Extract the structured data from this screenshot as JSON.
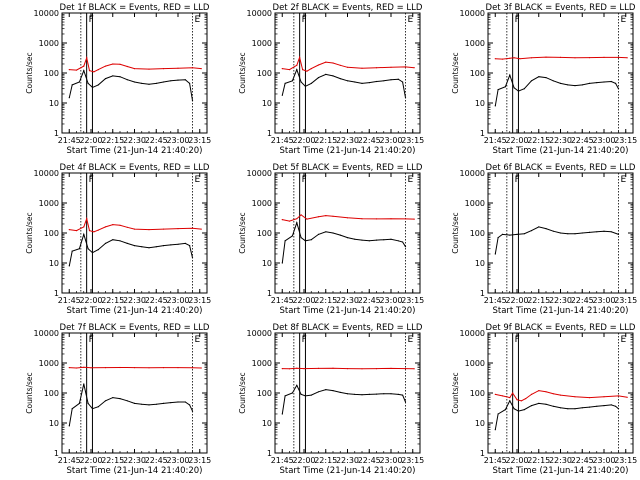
{
  "figure": {
    "xlabel": "Start Time (21-Jun-14 21:40:20)",
    "ylabel": "Counts/sec",
    "colors": {
      "events": "#000000",
      "lld": "#dd0000",
      "background": "#ffffff",
      "axes": "#000000"
    }
  },
  "chart_data": [
    {
      "type": "line",
      "title": "Det 1f BLACK = Events, RED = LLD",
      "xlabel": "Start Time (21-Jun-14 21:40:20)",
      "ylabel": "Counts/sec",
      "x_ticks": [
        "21:45",
        "22:00",
        "22:15",
        "22:30",
        "22:45",
        "23:00",
        "23:15"
      ],
      "y_ticks": [
        "1",
        "10",
        "100",
        "1000",
        "10000"
      ],
      "yscale": "log",
      "ylim": [
        1,
        10000
      ],
      "markers": [
        "F",
        "E"
      ],
      "series": [
        {
          "color": "#000000",
          "x": [
            "21:45",
            "21:47",
            "21:52",
            "21:55",
            "21:58",
            "22:01",
            "22:05",
            "22:10",
            "22:15",
            "22:20",
            "22:25",
            "22:30",
            "22:35",
            "22:40",
            "22:45",
            "22:50",
            "22:55",
            "23:00",
            "23:05",
            "23:08",
            "23:10"
          ],
          "y": [
            15,
            40,
            50,
            120,
            45,
            33,
            40,
            65,
            80,
            75,
            60,
            50,
            45,
            42,
            45,
            50,
            55,
            58,
            60,
            45,
            12
          ]
        },
        {
          "color": "#dd0000",
          "x": [
            "21:45",
            "21:50",
            "21:55",
            "21:57",
            "21:59",
            "22:02",
            "22:05",
            "22:10",
            "22:15",
            "22:20",
            "22:25",
            "22:30",
            "22:40",
            "22:50",
            "23:00",
            "23:10",
            "23:16"
          ],
          "y": [
            130,
            125,
            170,
            320,
            120,
            110,
            130,
            170,
            200,
            195,
            165,
            140,
            135,
            140,
            145,
            150,
            140
          ]
        }
      ]
    },
    {
      "type": "line",
      "title": "Det 2f BLACK = Events, RED = LLD",
      "xlabel": "Start Time (21-Jun-14 21:40:20)",
      "ylabel": "Counts/sec",
      "x_ticks": [
        "21:45",
        "22:00",
        "22:15",
        "22:30",
        "22:45",
        "23:00",
        "23:15"
      ],
      "y_ticks": [
        "1",
        "10",
        "100",
        "1000",
        "10000"
      ],
      "yscale": "log",
      "ylim": [
        1,
        10000
      ],
      "markers": [
        "F",
        "E"
      ],
      "series": [
        {
          "color": "#000000",
          "x": [
            "21:45",
            "21:47",
            "21:52",
            "21:55",
            "21:58",
            "22:01",
            "22:05",
            "22:10",
            "22:15",
            "22:20",
            "22:25",
            "22:30",
            "22:35",
            "22:40",
            "22:45",
            "22:50",
            "22:55",
            "23:00",
            "23:05",
            "23:08",
            "23:10"
          ],
          "y": [
            18,
            45,
            55,
            130,
            50,
            36,
            45,
            70,
            90,
            80,
            65,
            55,
            50,
            45,
            48,
            52,
            55,
            60,
            62,
            50,
            15
          ]
        },
        {
          "color": "#dd0000",
          "x": [
            "21:45",
            "21:50",
            "21:55",
            "21:57",
            "21:59",
            "22:02",
            "22:05",
            "22:10",
            "22:15",
            "22:20",
            "22:25",
            "22:30",
            "22:40",
            "22:50",
            "23:00",
            "23:10",
            "23:16"
          ],
          "y": [
            140,
            130,
            180,
            330,
            130,
            115,
            140,
            185,
            230,
            215,
            180,
            155,
            145,
            150,
            155,
            160,
            150
          ]
        }
      ]
    },
    {
      "type": "line",
      "title": "Det 3f BLACK = Events, RED = LLD",
      "xlabel": "Start Time (21-Jun-14 21:40:20)",
      "ylabel": "Counts/sec",
      "x_ticks": [
        "21:45",
        "22:00",
        "22:15",
        "22:30",
        "22:45",
        "23:00",
        "23:15"
      ],
      "y_ticks": [
        "1",
        "10",
        "100",
        "1000",
        "10000"
      ],
      "yscale": "log",
      "ylim": [
        1,
        10000
      ],
      "markers": [
        "F",
        "E"
      ],
      "series": [
        {
          "color": "#000000",
          "x": [
            "21:45",
            "21:47",
            "21:52",
            "21:55",
            "21:58",
            "22:01",
            "22:05",
            "22:10",
            "22:15",
            "22:20",
            "22:25",
            "22:30",
            "22:35",
            "22:40",
            "22:45",
            "22:50",
            "22:55",
            "23:00",
            "23:05",
            "23:08",
            "23:10"
          ],
          "y": [
            8,
            28,
            35,
            85,
            32,
            25,
            30,
            55,
            75,
            70,
            55,
            45,
            40,
            38,
            40,
            45,
            48,
            50,
            52,
            45,
            30
          ]
        },
        {
          "color": "#dd0000",
          "x": [
            "21:45",
            "21:50",
            "21:55",
            "21:58",
            "22:02",
            "22:10",
            "22:20",
            "22:30",
            "22:40",
            "22:50",
            "23:00",
            "23:10",
            "23:16"
          ],
          "y": [
            300,
            290,
            310,
            320,
            300,
            320,
            340,
            330,
            320,
            325,
            330,
            330,
            320
          ]
        }
      ]
    },
    {
      "type": "line",
      "title": "Det 4f BLACK = Events, RED = LLD",
      "xlabel": "Start Time (21-Jun-14 21:40:20)",
      "ylabel": "Counts/sec",
      "x_ticks": [
        "21:45",
        "22:00",
        "22:15",
        "22:30",
        "22:45",
        "23:00",
        "23:15"
      ],
      "y_ticks": [
        "1",
        "10",
        "100",
        "1000",
        "10000"
      ],
      "yscale": "log",
      "ylim": [
        1,
        10000
      ],
      "markers": [
        "F",
        "E"
      ],
      "series": [
        {
          "color": "#000000",
          "x": [
            "21:45",
            "21:47",
            "21:52",
            "21:55",
            "21:58",
            "22:01",
            "22:05",
            "22:10",
            "22:15",
            "22:20",
            "22:25",
            "22:30",
            "22:35",
            "22:40",
            "22:45",
            "22:50",
            "22:55",
            "23:00",
            "23:05",
            "23:08",
            "23:10"
          ],
          "y": [
            8,
            25,
            30,
            90,
            30,
            22,
            28,
            45,
            60,
            55,
            45,
            38,
            35,
            32,
            35,
            38,
            40,
            42,
            45,
            38,
            15
          ]
        },
        {
          "color": "#dd0000",
          "x": [
            "21:45",
            "21:50",
            "21:55",
            "21:57",
            "21:59",
            "22:02",
            "22:05",
            "22:10",
            "22:15",
            "22:20",
            "22:25",
            "22:30",
            "22:40",
            "22:50",
            "23:00",
            "23:10",
            "23:16"
          ],
          "y": [
            130,
            120,
            160,
            300,
            120,
            110,
            125,
            160,
            190,
            180,
            155,
            135,
            130,
            135,
            140,
            145,
            135
          ]
        }
      ]
    },
    {
      "type": "line",
      "title": "Det 5f BLACK = Events, RED = LLD",
      "xlabel": "Start Time (21-Jun-14 21:40:20)",
      "ylabel": "Counts/sec",
      "x_ticks": [
        "21:45",
        "22:00",
        "22:15",
        "22:30",
        "22:45",
        "23:00",
        "23:15"
      ],
      "y_ticks": [
        "1",
        "10",
        "100",
        "1000",
        "10000"
      ],
      "yscale": "log",
      "ylim": [
        1,
        10000
      ],
      "markers": [
        "F",
        "E"
      ],
      "series": [
        {
          "color": "#000000",
          "x": [
            "21:45",
            "21:47",
            "21:52",
            "21:55",
            "21:58",
            "22:01",
            "22:05",
            "22:10",
            "22:15",
            "22:20",
            "22:25",
            "22:30",
            "22:35",
            "22:40",
            "22:45",
            "22:50",
            "22:55",
            "23:00",
            "23:05",
            "23:08",
            "23:10"
          ],
          "y": [
            10,
            55,
            80,
            220,
            70,
            55,
            60,
            90,
            110,
            100,
            85,
            70,
            62,
            58,
            55,
            58,
            60,
            62,
            55,
            50,
            35
          ]
        },
        {
          "color": "#dd0000",
          "x": [
            "21:45",
            "21:50",
            "21:55",
            "21:58",
            "22:02",
            "22:10",
            "22:15",
            "22:20",
            "22:30",
            "22:40",
            "22:50",
            "23:00",
            "23:10",
            "23:16"
          ],
          "y": [
            280,
            250,
            300,
            400,
            290,
            350,
            380,
            360,
            320,
            300,
            295,
            300,
            295,
            290
          ]
        }
      ]
    },
    {
      "type": "line",
      "title": "Det 6f BLACK = Events, RED = LLD",
      "xlabel": "Start Time (21-Jun-14 21:40:20)",
      "ylabel": "Counts/sec",
      "x_ticks": [
        "21:45",
        "22:00",
        "22:15",
        "22:30",
        "22:45",
        "23:00",
        "23:15"
      ],
      "y_ticks": [
        "1",
        "10",
        "100",
        "1000",
        "10000"
      ],
      "yscale": "log",
      "ylim": [
        1,
        10000
      ],
      "markers": [
        "F",
        "E"
      ],
      "series": [
        {
          "color": "#000000",
          "x": [
            "21:45",
            "21:47",
            "21:50",
            "21:55",
            "22:00",
            "22:05",
            "22:10",
            "22:15",
            "22:20",
            "22:25",
            "22:30",
            "22:35",
            "22:40",
            "22:45",
            "22:50",
            "22:55",
            "23:00",
            "23:05",
            "23:10"
          ],
          "y": [
            20,
            70,
            90,
            85,
            90,
            95,
            120,
            160,
            140,
            115,
            100,
            95,
            95,
            100,
            105,
            110,
            115,
            110,
            90
          ]
        }
      ]
    },
    {
      "type": "line",
      "title": "Det 7f BLACK = Events, RED = LLD",
      "xlabel": "Start Time (21-Jun-14 21:40:20)",
      "ylabel": "Counts/sec",
      "x_ticks": [
        "21:45",
        "22:00",
        "22:15",
        "22:30",
        "22:45",
        "23:00",
        "23:15"
      ],
      "y_ticks": [
        "1",
        "10",
        "100",
        "1000",
        "10000"
      ],
      "yscale": "log",
      "ylim": [
        1,
        10000
      ],
      "markers": [
        "F",
        "E"
      ],
      "series": [
        {
          "color": "#000000",
          "x": [
            "21:45",
            "21:47",
            "21:52",
            "21:55",
            "21:58",
            "22:01",
            "22:05",
            "22:10",
            "22:15",
            "22:20",
            "22:25",
            "22:30",
            "22:35",
            "22:40",
            "22:45",
            "22:50",
            "22:55",
            "23:00",
            "23:05",
            "23:08",
            "23:10"
          ],
          "y": [
            8,
            30,
            45,
            200,
            45,
            30,
            35,
            55,
            70,
            65,
            55,
            45,
            42,
            40,
            42,
            45,
            48,
            50,
            50,
            40,
            25
          ]
        },
        {
          "color": "#dd0000",
          "x": [
            "21:45",
            "21:50",
            "21:55",
            "22:00",
            "22:10",
            "22:20",
            "22:30",
            "22:40",
            "22:50",
            "23:00",
            "23:10",
            "23:16"
          ],
          "y": [
            700,
            680,
            720,
            690,
            700,
            710,
            700,
            690,
            700,
            700,
            690,
            680
          ]
        }
      ]
    },
    {
      "type": "line",
      "title": "Det 8f BLACK = Events, RED = LLD",
      "xlabel": "Start Time (21-Jun-14 21:40:20)",
      "ylabel": "Counts/sec",
      "x_ticks": [
        "21:45",
        "22:00",
        "22:15",
        "22:30",
        "22:45",
        "23:00",
        "23:15"
      ],
      "y_ticks": [
        "1",
        "10",
        "100",
        "1000",
        "10000"
      ],
      "yscale": "log",
      "ylim": [
        1,
        10000
      ],
      "markers": [
        "F",
        "E"
      ],
      "series": [
        {
          "color": "#000000",
          "x": [
            "21:45",
            "21:47",
            "21:52",
            "21:55",
            "21:58",
            "22:01",
            "22:05",
            "22:10",
            "22:15",
            "22:20",
            "22:25",
            "22:30",
            "22:35",
            "22:40",
            "22:45",
            "22:50",
            "22:55",
            "23:00",
            "23:05",
            "23:08",
            "23:10"
          ],
          "y": [
            20,
            80,
            100,
            180,
            90,
            80,
            85,
            110,
            130,
            120,
            105,
            95,
            90,
            88,
            90,
            92,
            95,
            95,
            90,
            85,
            50
          ]
        },
        {
          "color": "#dd0000",
          "x": [
            "21:45",
            "21:50",
            "21:55",
            "22:00",
            "22:10",
            "22:20",
            "22:30",
            "22:40",
            "22:50",
            "23:00",
            "23:10",
            "23:16"
          ],
          "y": [
            650,
            640,
            670,
            650,
            660,
            670,
            650,
            640,
            650,
            660,
            650,
            640
          ]
        }
      ]
    },
    {
      "type": "line",
      "title": "Det 9f BLACK = Events, RED = LLD",
      "xlabel": "Start Time (21-Jun-14 21:40:20)",
      "ylabel": "Counts/sec",
      "x_ticks": [
        "21:45",
        "22:00",
        "22:15",
        "22:30",
        "22:45",
        "23:00",
        "23:15"
      ],
      "y_ticks": [
        "1",
        "10",
        "100",
        "1000",
        "10000"
      ],
      "yscale": "log",
      "ylim": [
        1,
        10000
      ],
      "markers": [
        "F",
        "E"
      ],
      "series": [
        {
          "color": "#000000",
          "x": [
            "21:45",
            "21:47",
            "21:52",
            "21:55",
            "21:58",
            "22:01",
            "22:05",
            "22:10",
            "22:15",
            "22:20",
            "22:25",
            "22:30",
            "22:35",
            "22:40",
            "22:45",
            "22:50",
            "22:55",
            "23:00",
            "23:05",
            "23:08",
            "23:10"
          ],
          "y": [
            6,
            20,
            28,
            55,
            30,
            25,
            28,
            38,
            45,
            42,
            36,
            32,
            30,
            30,
            32,
            34,
            36,
            38,
            40,
            36,
            30
          ]
        },
        {
          "color": "#dd0000",
          "x": [
            "21:45",
            "21:50",
            "21:55",
            "21:57",
            "22:00",
            "22:03",
            "22:06",
            "22:10",
            "22:15",
            "22:20",
            "22:25",
            "22:30",
            "22:40",
            "22:50",
            "23:00",
            "23:10",
            "23:16"
          ],
          "y": [
            90,
            80,
            70,
            100,
            60,
            55,
            65,
            90,
            120,
            110,
            95,
            85,
            75,
            70,
            75,
            80,
            72
          ]
        }
      ]
    }
  ]
}
